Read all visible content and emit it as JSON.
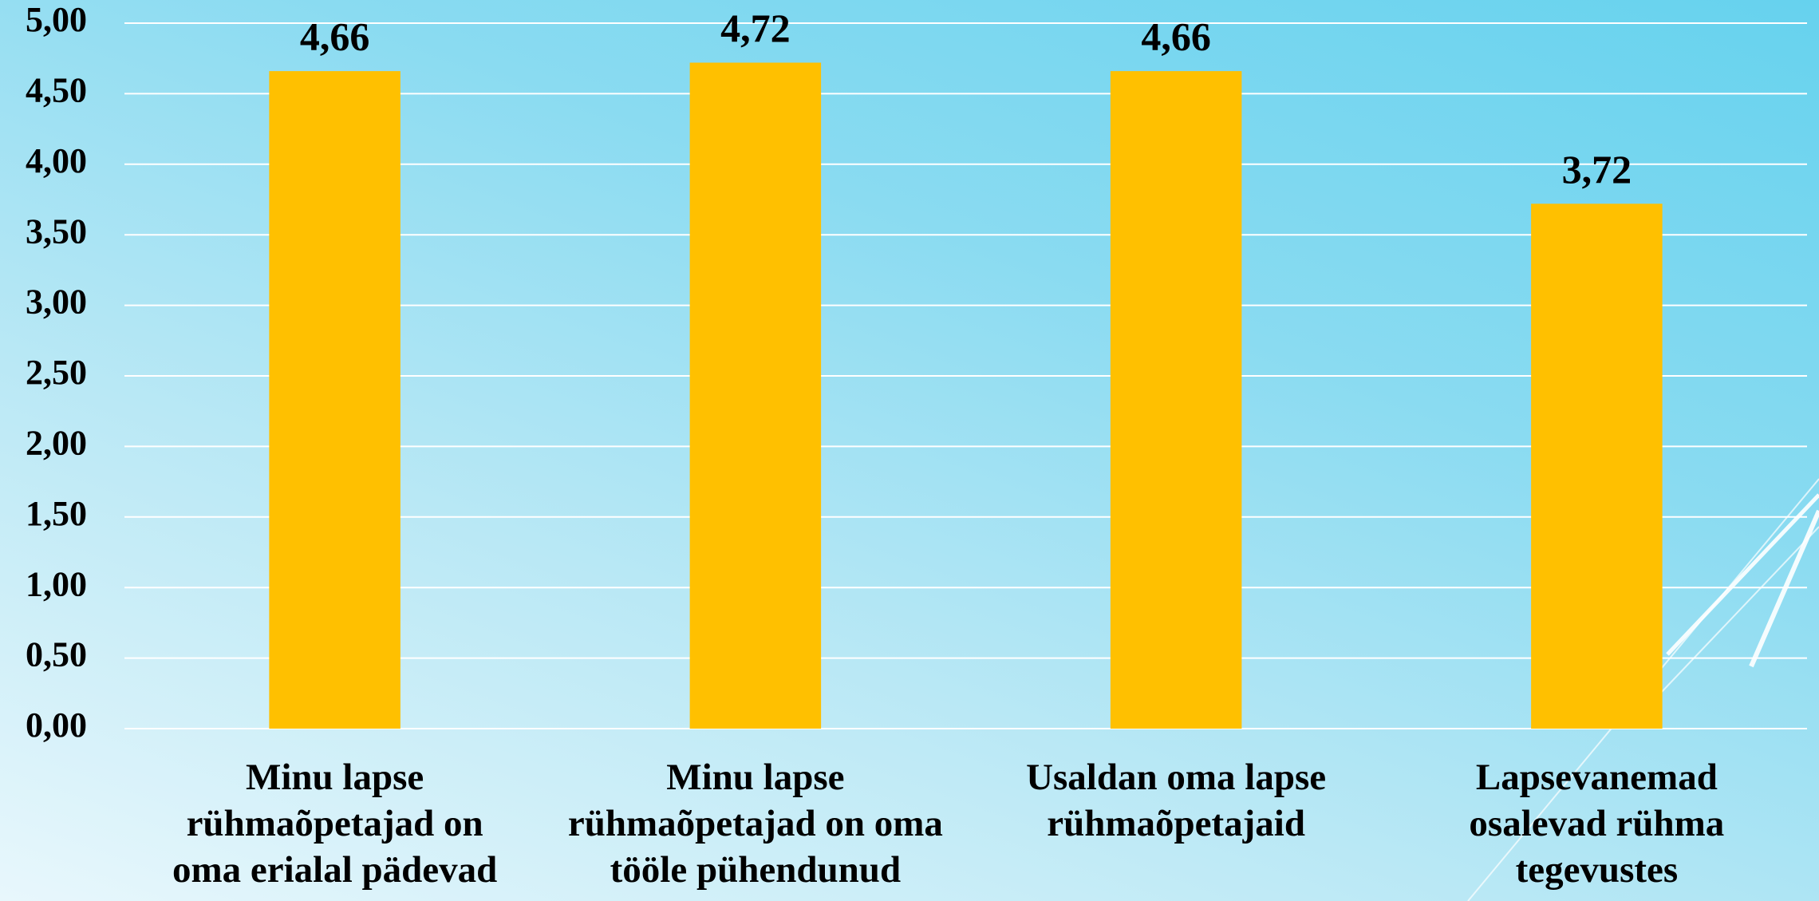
{
  "chart_data": {
    "type": "bar",
    "categories": [
      "Minu lapse rühmaõpetajad on oma erialal pädevad",
      "Minu lapse rühmaõpetajad on oma tööle pühendunud",
      "Usaldan oma lapse rühmaõpetajaid",
      "Lapsevanemad osalevad rühma tegevustes"
    ],
    "values": [
      4.66,
      4.72,
      4.66,
      3.72
    ],
    "value_labels": [
      "4,66",
      "4,72",
      "4,66",
      "3,72"
    ],
    "color": "#ffc000",
    "ylim": [
      0,
      5
    ],
    "yticks": [
      {
        "value": 0,
        "label": "0,00"
      },
      {
        "value": 0.5,
        "label": "0,50"
      },
      {
        "value": 1,
        "label": "1,00"
      },
      {
        "value": 1.5,
        "label": "1,50"
      },
      {
        "value": 2,
        "label": "2,00"
      },
      {
        "value": 2.5,
        "label": "2,50"
      },
      {
        "value": 3,
        "label": "3,00"
      },
      {
        "value": 3.5,
        "label": "3,50"
      },
      {
        "value": 4,
        "label": "4,00"
      },
      {
        "value": 4.5,
        "label": "4,50"
      },
      {
        "value": 5,
        "label": "5,00"
      }
    ],
    "grid": true
  }
}
